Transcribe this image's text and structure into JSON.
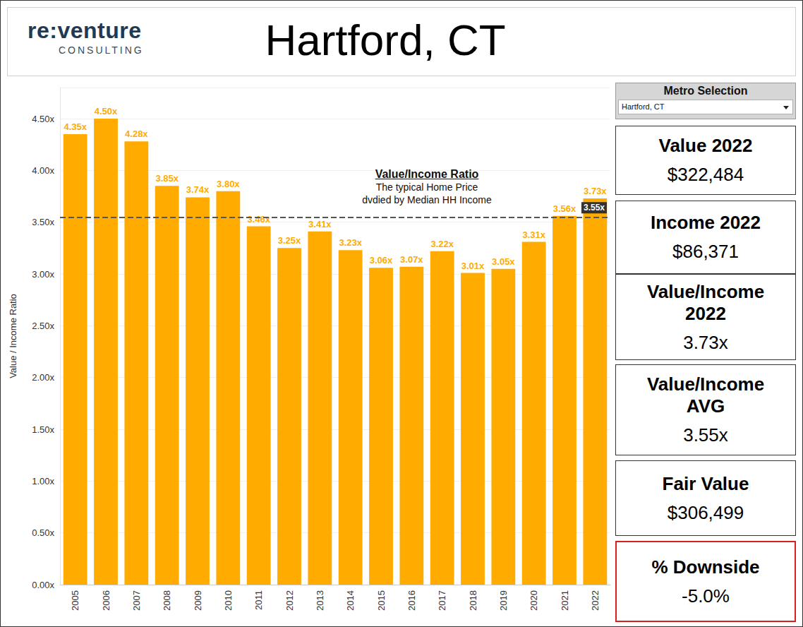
{
  "header": {
    "logo": [
      "re:venture",
      "CONSULTING"
    ],
    "title": "Hartford, CT"
  },
  "chart_data": {
    "type": "bar",
    "y_label": "Value / Income Ratio",
    "categories": [
      "2005",
      "2006",
      "2007",
      "2008",
      "2009",
      "2010",
      "2011",
      "2012",
      "2013",
      "2014",
      "2015",
      "2016",
      "2017",
      "2018",
      "2019",
      "2020",
      "2021",
      "2022"
    ],
    "values": [
      4.35,
      4.5,
      4.28,
      3.85,
      3.74,
      3.8,
      3.46,
      3.25,
      3.41,
      3.23,
      3.06,
      3.07,
      3.22,
      3.01,
      3.05,
      3.31,
      3.56,
      3.73
    ],
    "value_labels": [
      "4.35x",
      "4.50x",
      "4.28x",
      "3.85x",
      "3.74x",
      "3.80x",
      "3.46x",
      "3.25x",
      "3.41x",
      "3.23x",
      "3.06x",
      "3.07x",
      "3.22x",
      "3.01x",
      "3.05x",
      "3.31x",
      "3.56x",
      "3.73x"
    ],
    "color": "#ffab00",
    "data_labels": true,
    "grid": true,
    "ylim": [
      0,
      4.8
    ],
    "yticks": [
      {
        "value": 0,
        "label": "0.00x"
      },
      {
        "value": 0.5,
        "label": "0.50x"
      },
      {
        "value": 1,
        "label": "1.00x"
      },
      {
        "value": 1.5,
        "label": "1.50x"
      },
      {
        "value": 2,
        "label": "2.00x"
      },
      {
        "value": 2.5,
        "label": "2.50x"
      },
      {
        "value": 3,
        "label": "3.00x"
      },
      {
        "value": 3.5,
        "label": "3.50x"
      },
      {
        "value": 4,
        "label": "4.00x"
      },
      {
        "value": 4.5,
        "label": "4.50x"
      }
    ],
    "reference_line": {
      "value": 3.55,
      "label": "3.55x"
    },
    "annotation": {
      "title": "Value/Income Ratio",
      "lines": [
        "The typical Home Price",
        "dvdied by Median HH Income"
      ]
    }
  },
  "panel": {
    "selector": {
      "label": "Metro Selection",
      "value": "Hartford, CT"
    },
    "cards": [
      {
        "title": [
          "Value 2022"
        ],
        "value": "$322,484"
      },
      {
        "title": [
          "Income 2022"
        ],
        "value": "$86,371"
      },
      {
        "title": [
          "Value/Income",
          "2022"
        ],
        "value": "3.73x"
      },
      {
        "title": [
          "Value/Income",
          "AVG"
        ],
        "value": "3.55x"
      },
      {
        "title": [
          "Fair Value"
        ],
        "value": "$306,499"
      },
      {
        "title": [
          "% Downside"
        ],
        "value": "-5.0%",
        "color": "#d62020"
      }
    ]
  }
}
